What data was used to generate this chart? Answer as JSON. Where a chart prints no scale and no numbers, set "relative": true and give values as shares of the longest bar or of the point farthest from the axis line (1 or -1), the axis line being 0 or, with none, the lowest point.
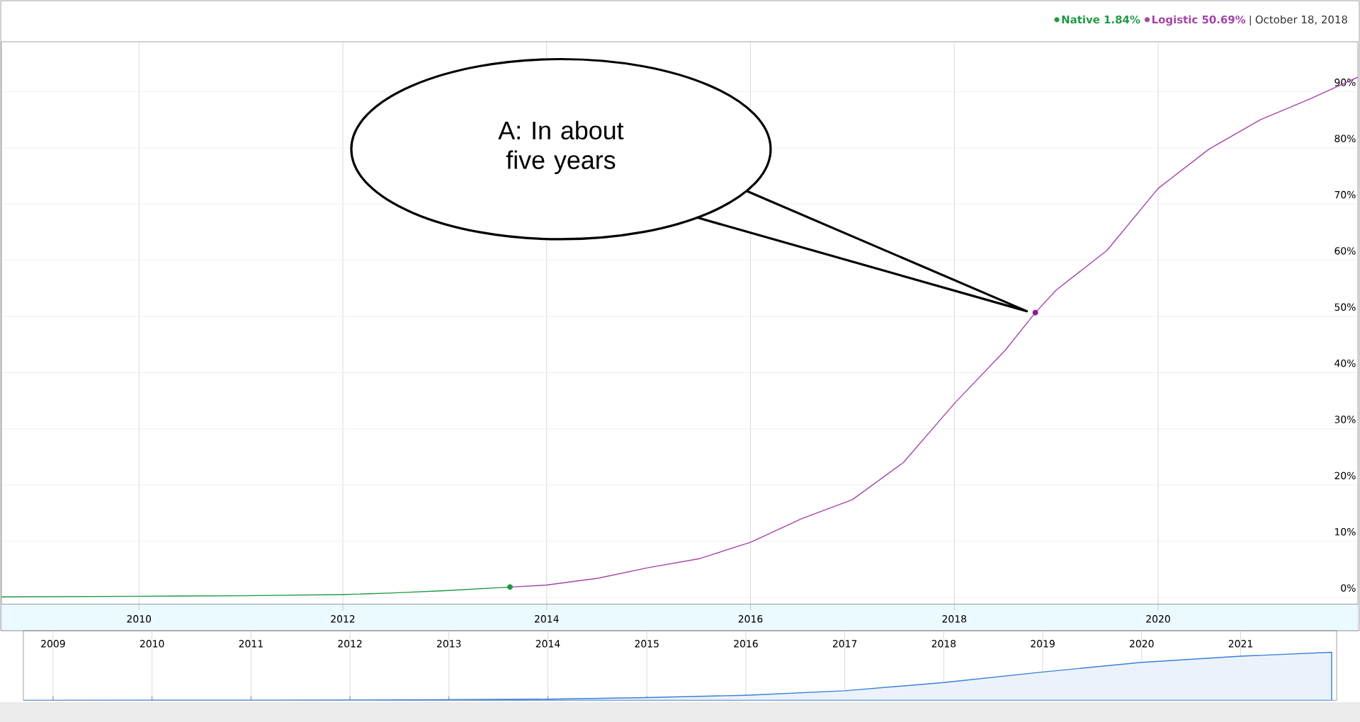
{
  "chart_data": [
    {
      "type": "line",
      "series": [
        {
          "name": "Native 1.84%",
          "color": "#1e9a45",
          "x": [
            2008.65,
            2010,
            2011,
            2012,
            2012.5,
            2013,
            2013.64
          ],
          "values": [
            0.1,
            0.2,
            0.3,
            0.5,
            0.8,
            1.2,
            1.84
          ]
        },
        {
          "name": "Logistic 50.69%",
          "color": "#a543a8",
          "x": [
            2013.64,
            2014,
            2014.5,
            2015,
            2015.5,
            2016,
            2016.5,
            2017,
            2017.5,
            2018,
            2018.5,
            2018.795,
            2019,
            2019.5,
            2020,
            2020.5,
            2021,
            2021.5,
            2021.96
          ],
          "values": [
            1.84,
            2.2,
            3.4,
            5.3,
            6.9,
            9.8,
            14.0,
            17.4,
            24,
            34.5,
            44,
            50.69,
            54.7,
            61.8,
            72.8,
            79.8,
            85.0,
            88.8,
            92.6
          ]
        },
        {
          "type": "scatter",
          "x": [
            2013.64,
            2018.795
          ],
          "values": [
            1.84,
            50.69
          ],
          "colors": [
            "#1e9a45",
            "#8b1a8f"
          ]
        }
      ],
      "xlim": [
        2008.65,
        2021.96
      ],
      "ylim": [
        -1.2,
        98.9
      ],
      "xticks": [
        2010,
        2012,
        2014,
        2016,
        2018,
        2020
      ],
      "yticks": [
        {
          "value": 0,
          "label": "0%"
        },
        {
          "value": 10,
          "label": "10%"
        },
        {
          "value": 20,
          "label": "20%"
        },
        {
          "value": 30,
          "label": "30%"
        },
        {
          "value": 40,
          "label": "40%"
        },
        {
          "value": 50,
          "label": "50%"
        },
        {
          "value": 60,
          "label": "60%"
        },
        {
          "value": 70,
          "label": "70%"
        },
        {
          "value": 80,
          "label": "80%"
        },
        {
          "value": 90,
          "label": "90%"
        }
      ],
      "grid": true,
      "legend": "top right",
      "annotations": [
        "October 18, 2018",
        "A: In about five years"
      ]
    },
    {
      "type": "area",
      "relative": true,
      "color": "#3a7fd8",
      "x": [
        2008.7,
        2010,
        2011,
        2012,
        2013,
        2014,
        2015,
        2016,
        2017,
        2018,
        2019,
        2020,
        2021,
        2021.92
      ],
      "values": [
        0,
        0.003,
        0.004,
        0.007,
        0.013,
        0.024,
        0.057,
        0.106,
        0.2,
        0.37,
        0.59,
        0.79,
        0.92,
        1
      ],
      "xlim": [
        2008.7,
        2021.97
      ],
      "xticks": [
        2009,
        2010,
        2011,
        2012,
        2013,
        2014,
        2015,
        2016,
        2017,
        2018,
        2019,
        2020,
        2021
      ],
      "grid": "x"
    }
  ]
}
